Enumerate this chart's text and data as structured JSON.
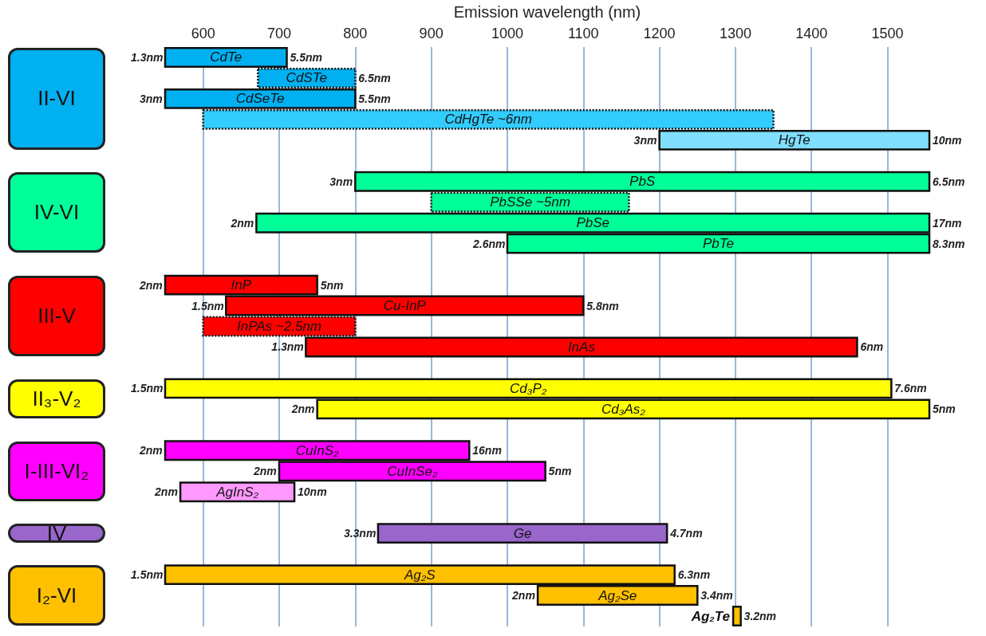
{
  "chart_data": {
    "type": "bar",
    "orientation": "horizontal",
    "xlabel": "Emission wavelength (nm)",
    "categories": [
      "CdTe",
      "CdSTe",
      "CdSeTe",
      "CdHgTe ~6nm",
      "HgTe",
      null,
      "PbS",
      "PbSSe ~5nm",
      "PbSe",
      "PbTe",
      null,
      "InP",
      "Cu-InP",
      "InPAs ~2.5nm",
      "InAs",
      null,
      "Cd₃P₂",
      "Cd₃As₂",
      null,
      "CuInS₂",
      "CuInSe₂",
      "AgInS₂",
      null,
      "Ge",
      null,
      "Ag₂S",
      "Ag₂Se",
      "Ag₂Te"
    ],
    "series": [
      {
        "line_style": "solid",
        "base": [
          550,
          null,
          550,
          null,
          1200,
          null,
          800,
          null,
          670,
          1000,
          null,
          550,
          630,
          null,
          735,
          null,
          550,
          750,
          null,
          550,
          700,
          570,
          null,
          830,
          null,
          550,
          1040,
          1297
        ],
        "values": [
          160,
          null,
          250,
          null,
          355,
          null,
          755,
          null,
          885,
          555,
          null,
          200,
          470,
          null,
          725,
          null,
          955,
          805,
          null,
          400,
          350,
          150,
          null,
          380,
          null,
          670,
          210,
          10
        ],
        "colors": [
          "#00b0f0",
          null,
          "#00b0f0",
          null,
          "#80dfff",
          null,
          "#00ff99",
          null,
          "#00ff99",
          "#00ff99",
          null,
          "#ff0000",
          "#ff0000",
          null,
          "#ff0000",
          null,
          "#ffff00",
          "#ffff00",
          null,
          "#ff00ff",
          "#ff00ff",
          "#ff99ff",
          null,
          "#9966cc",
          null,
          "#ffc000",
          "#ffc000",
          "#ffc000"
        ]
      },
      {
        "line_style": "dotted",
        "base": [
          null,
          672,
          null,
          600,
          null,
          null,
          null,
          900,
          null,
          null,
          null,
          null,
          null,
          600,
          null,
          null,
          null,
          null,
          null,
          null,
          null,
          null,
          null,
          null,
          null,
          null,
          null,
          null
        ],
        "values": [
          null,
          128,
          null,
          750,
          null,
          null,
          null,
          260,
          null,
          null,
          null,
          null,
          null,
          200,
          null,
          null,
          null,
          null,
          null,
          null,
          null,
          null,
          null,
          null,
          null,
          null,
          null,
          null
        ],
        "colors": [
          null,
          "#00b0f0",
          null,
          "#33ccff",
          null,
          null,
          null,
          "#00ff99",
          null,
          null,
          null,
          null,
          null,
          "#ff0000",
          null,
          null,
          null,
          null,
          null,
          null,
          null,
          null,
          null,
          null,
          null,
          null,
          null,
          null
        ]
      }
    ],
    "xlim": [
      550,
      1555
    ],
    "xticks": [
      600,
      700,
      800,
      900,
      1000,
      1100,
      1200,
      1300,
      1400,
      1500
    ],
    "grid": "x",
    "tick_labels": "x",
    "annotations": [
      "II-VI",
      "IV-VI",
      "III-V",
      "II₃-V₂",
      "I-III-VI₂",
      "IV",
      "I₂-VI",
      {
        "text": "1.3nm",
        "x": 550,
        "y": "CdTe"
      },
      {
        "text": "5.5nm",
        "x": 710,
        "y": "CdTe"
      },
      {
        "text": "6.5nm",
        "x": 800,
        "y": "CdSTe"
      },
      {
        "text": "3nm",
        "x": 550,
        "y": "CdSeTe"
      },
      {
        "text": "5.5nm",
        "x": 800,
        "y": "CdSeTe"
      },
      {
        "text": "3nm",
        "x": 1200,
        "y": "HgTe"
      },
      {
        "text": "10nm",
        "x": 1555,
        "y": "HgTe"
      },
      {
        "text": "3nm",
        "x": 800,
        "y": "PbS"
      },
      {
        "text": "6.5nm",
        "x": 1555,
        "y": "PbS"
      },
      {
        "text": "2nm",
        "x": 670,
        "y": "PbSe"
      },
      {
        "text": "17nm",
        "x": 1555,
        "y": "PbSe"
      },
      {
        "text": "2.6nm",
        "x": 1000,
        "y": "PbTe"
      },
      {
        "text": "8.3nm",
        "x": 1555,
        "y": "PbTe"
      },
      {
        "text": "2nm",
        "x": 550,
        "y": "InP"
      },
      {
        "text": "5nm",
        "x": 750,
        "y": "InP"
      },
      {
        "text": "1.5nm",
        "x": 630,
        "y": "Cu-InP"
      },
      {
        "text": "5.8nm",
        "x": 1100,
        "y": "Cu-InP"
      },
      {
        "text": "1.3nm",
        "x": 735,
        "y": "InAs"
      },
      {
        "text": "6nm",
        "x": 1460,
        "y": "InAs"
      },
      {
        "text": "1.5nm",
        "x": 550,
        "y": "Cd₃P₂"
      },
      {
        "text": "7.6nm",
        "x": 1505,
        "y": "Cd₃P₂"
      },
      {
        "text": "2nm",
        "x": 750,
        "y": "Cd₃As₂"
      },
      {
        "text": "5nm",
        "x": 1555,
        "y": "Cd₃As₂"
      },
      {
        "text": "2nm",
        "x": 550,
        "y": "CuInS₂"
      },
      {
        "text": "16nm",
        "x": 950,
        "y": "CuInS₂"
      },
      {
        "text": "2nm",
        "x": 700,
        "y": "CuInSe₂"
      },
      {
        "text": "5nm",
        "x": 1050,
        "y": "CuInSe₂"
      },
      {
        "text": "2nm",
        "x": 570,
        "y": "AgInS₂"
      },
      {
        "text": "10nm",
        "x": 720,
        "y": "AgInS₂"
      },
      {
        "text": "3.3nm",
        "x": 830,
        "y": "Ge"
      },
      {
        "text": "4.7nm",
        "x": 1210,
        "y": "Ge"
      },
      {
        "text": "1.5nm",
        "x": 550,
        "y": "Ag₂S"
      },
      {
        "text": "6.3nm",
        "x": 1220,
        "y": "Ag₂S"
      },
      {
        "text": "2nm",
        "x": 1040,
        "y": "Ag₂Se"
      },
      {
        "text": "3.4nm",
        "x": 1250,
        "y": "Ag₂Se"
      },
      {
        "text": "3.2nm",
        "x": 1307,
        "y": "Ag₂Te"
      }
    ]
  }
}
